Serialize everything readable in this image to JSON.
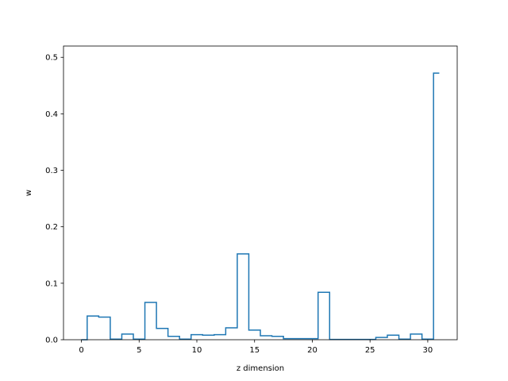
{
  "chart_data": {
    "type": "line",
    "drawstyle": "steps-mid",
    "title": "",
    "xlabel": "z dimension",
    "ylabel": "w",
    "xlim": [
      -1.55,
      32.55
    ],
    "ylim": [
      0,
      0.52
    ],
    "xticks": [
      0,
      5,
      10,
      15,
      20,
      25,
      30
    ],
    "yticks": [
      0.0,
      0.1,
      0.2,
      0.3,
      0.4,
      0.5
    ],
    "grid": false,
    "legend": "none",
    "line_color": "#1f77b4",
    "series": [
      {
        "x": [
          0,
          1,
          2,
          3,
          4,
          5,
          6,
          7,
          8,
          9,
          10,
          11,
          12,
          13,
          14,
          15,
          16,
          17,
          18,
          19,
          20,
          21,
          22,
          23,
          24,
          25,
          26,
          27,
          28,
          29,
          30,
          31
        ],
        "values": [
          0.0,
          0.042,
          0.04,
          0.001,
          0.01,
          0.001,
          0.066,
          0.02,
          0.006,
          0.001,
          0.009,
          0.008,
          0.009,
          0.021,
          0.152,
          0.017,
          0.007,
          0.006,
          0.002,
          0.002,
          0.002,
          0.084,
          0.0005,
          0.0005,
          0.0005,
          0.0005,
          0.004,
          0.008,
          0.001,
          0.01,
          0.001,
          0.472
        ]
      }
    ]
  }
}
